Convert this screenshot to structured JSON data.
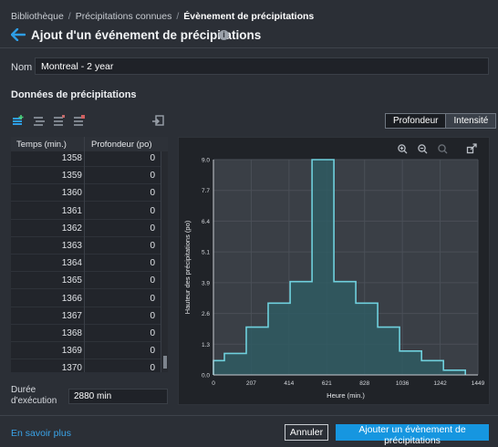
{
  "breadcrumb": {
    "items": [
      "Bibliothèque",
      "Précipitations connues"
    ],
    "separator": "/",
    "current": "Évènement de précipitations"
  },
  "header": {
    "title": "Ajout d'un événement de précipitations",
    "info_icon": "i"
  },
  "form": {
    "name_label": "Nom",
    "name_value": "Montreal - 2 year"
  },
  "section": {
    "title": "Données de précipitations"
  },
  "toolbar": {
    "icons": [
      "add-row-icon",
      "insert-row-icon",
      "delete-row-icon",
      "clear-table-icon",
      "import-icon"
    ],
    "toggle": {
      "options": [
        "Profondeur",
        "Intensité"
      ],
      "selected": "Profondeur"
    }
  },
  "table": {
    "headers": [
      "Temps (min.)",
      "Profondeur (po)"
    ],
    "rows": [
      [
        "1358",
        "0"
      ],
      [
        "1359",
        "0"
      ],
      [
        "1360",
        "0"
      ],
      [
        "1361",
        "0"
      ],
      [
        "1362",
        "0"
      ],
      [
        "1363",
        "0"
      ],
      [
        "1364",
        "0"
      ],
      [
        "1365",
        "0"
      ],
      [
        "1366",
        "0"
      ],
      [
        "1367",
        "0"
      ],
      [
        "1368",
        "0"
      ],
      [
        "1369",
        "0"
      ],
      [
        "1370",
        "0"
      ]
    ]
  },
  "duration": {
    "label_line1": "Durée",
    "label_line2": "d'exécution",
    "value": "2880 min"
  },
  "chart_data": {
    "type": "area",
    "xlabel": "Heure (min.)",
    "ylabel": "Hauteur des précipitations (po)",
    "xticks": [
      "0",
      "207",
      "414",
      "621",
      "828",
      "1036",
      "1242",
      "1449"
    ],
    "yticks": [
      "0.0",
      "1.3",
      "2.6",
      "3.9",
      "5.1",
      "6.4",
      "7.7",
      "9.0"
    ],
    "xlim": [
      0,
      1449
    ],
    "ylim": [
      0,
      9.0
    ],
    "grid": true,
    "series": [
      {
        "x": [
          0,
          0,
          60,
          60,
          180,
          180,
          300,
          300,
          420,
          420,
          540,
          540,
          660,
          660,
          780,
          780,
          900,
          900,
          1020,
          1020,
          1140,
          1140,
          1260,
          1260,
          1380,
          1380
        ],
        "y": [
          0,
          0.6,
          0.6,
          0.9,
          0.9,
          2.0,
          2.0,
          3.0,
          3.0,
          3.9,
          3.9,
          9.0,
          9.0,
          3.9,
          3.9,
          3.0,
          3.0,
          2.0,
          2.0,
          1.0,
          1.0,
          0.6,
          0.6,
          0.2,
          0.2,
          0
        ]
      }
    ],
    "colors": {
      "line": "#6fd0dd",
      "fill": "#2f5a61",
      "grid": "#4a4f57",
      "plot_bg": "#3a3f46"
    },
    "tools": [
      "zoom-in-icon",
      "zoom-out-icon",
      "reset-zoom-icon",
      "expand-icon"
    ]
  },
  "footer": {
    "learn_more": "En savoir plus",
    "cancel": "Annuler",
    "submit": "Ajouter un évènement de précipitations"
  }
}
